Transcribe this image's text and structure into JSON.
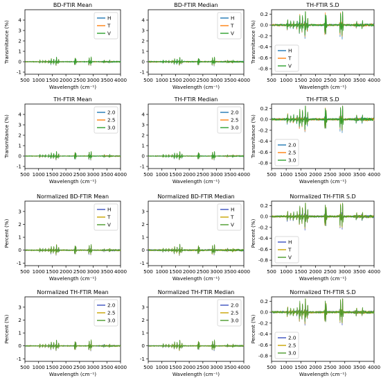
{
  "chart_data": [
    {
      "type": "line",
      "title": "BD-FTIR Mean",
      "xlabel": "Wavelength (cm⁻¹)",
      "ylabel": "Transmitance (%)",
      "xlim": [
        500,
        4000
      ],
      "ylim": [
        -1.2,
        5.0
      ],
      "xticks": [
        "500",
        "1000",
        "1500",
        "2000",
        "2500",
        "3000",
        "3500",
        "4000"
      ],
      "yticks": [
        "-1",
        "0",
        "1",
        "2",
        "3",
        "4"
      ],
      "legend": "top-right",
      "series": [
        {
          "name": "H",
          "color": "#1f77b4"
        },
        {
          "name": "T",
          "color": "#ff7f0e"
        },
        {
          "name": "V",
          "color": "#2ca02c"
        }
      ],
      "amp": 0.5,
      "noise": 0.06
    },
    {
      "type": "line",
      "title": "BD-FTIR Median",
      "xlabel": "Wavelength (cm⁻¹)",
      "ylabel": "",
      "xlim": [
        500,
        4000
      ],
      "ylim": [
        -1.2,
        5.0
      ],
      "xticks": [
        "500",
        "1000",
        "1500",
        "2000",
        "2500",
        "3000",
        "3500",
        "4000"
      ],
      "yticks": [
        "-1",
        "0",
        "1",
        "2",
        "3",
        "4"
      ],
      "legend": "top-right",
      "series": [
        {
          "name": "H",
          "color": "#1f77b4"
        },
        {
          "name": "T",
          "color": "#ff7f0e"
        },
        {
          "name": "V",
          "color": "#2ca02c"
        }
      ],
      "amp": 0.5,
      "noise": 0.08
    },
    {
      "type": "line",
      "title": "TH-FTIR S.D",
      "xlabel": "Wavelength (cm⁻¹)",
      "ylabel": "Transmitance (%)",
      "xlim": [
        500,
        4000
      ],
      "ylim": [
        -0.9,
        0.28
      ],
      "xticks": [
        "500",
        "1000",
        "1500",
        "2000",
        "2500",
        "3000",
        "3500",
        "4000"
      ],
      "yticks": [
        "-0.8",
        "-0.6",
        "-0.4",
        "-0.2",
        "0.0",
        "0.2"
      ],
      "legend": "lower-left",
      "series": [
        {
          "name": "H",
          "color": "#1f77b4"
        },
        {
          "name": "T",
          "color": "#ff7f0e"
        },
        {
          "name": "V",
          "color": "#2ca02c"
        }
      ],
      "amp": 0.3,
      "noise": 0.03
    },
    {
      "type": "line",
      "title": "TH-FTIR Mean",
      "xlabel": "Wavelength (cm⁻¹)",
      "ylabel": "Transmitance (%)",
      "xlim": [
        500,
        4000
      ],
      "ylim": [
        -1.2,
        5.0
      ],
      "xticks": [
        "500",
        "1000",
        "1500",
        "2000",
        "2500",
        "3000",
        "3500",
        "4000"
      ],
      "yticks": [
        "-1",
        "0",
        "1",
        "2",
        "3",
        "4"
      ],
      "legend": "top-right",
      "series": [
        {
          "name": "2.0",
          "color": "#1f77b4"
        },
        {
          "name": "2.5",
          "color": "#ff7f0e"
        },
        {
          "name": "3.0",
          "color": "#2ca02c"
        }
      ],
      "amp": 0.5,
      "noise": 0.05
    },
    {
      "type": "line",
      "title": "TH-FTIR Median",
      "xlabel": "Wavelength (cm⁻¹)",
      "ylabel": "",
      "xlim": [
        500,
        4000
      ],
      "ylim": [
        -1.2,
        5.0
      ],
      "xticks": [
        "500",
        "1000",
        "1500",
        "2000",
        "2500",
        "3000",
        "3500",
        "4000"
      ],
      "yticks": [
        "-1",
        "0",
        "1",
        "2",
        "3",
        "4"
      ],
      "legend": "top-right",
      "series": [
        {
          "name": "2.0",
          "color": "#1f77b4"
        },
        {
          "name": "2.5",
          "color": "#ff7f0e"
        },
        {
          "name": "3.0",
          "color": "#2ca02c"
        }
      ],
      "amp": 0.5,
      "noise": 0.05
    },
    {
      "type": "line",
      "title": "TH-FTIR S.D",
      "xlabel": "Wavelength (cm⁻¹)",
      "ylabel": "Transmitance (%)",
      "xlim": [
        500,
        4000
      ],
      "ylim": [
        -0.9,
        0.28
      ],
      "xticks": [
        "500",
        "1000",
        "1500",
        "2000",
        "2500",
        "3000",
        "3500",
        "4000"
      ],
      "yticks": [
        "-0.8",
        "-0.6",
        "-0.4",
        "-0.2",
        "0.0",
        "0.2"
      ],
      "legend": "lower-left",
      "series": [
        {
          "name": "2.0",
          "color": "#1f77b4"
        },
        {
          "name": "2.5",
          "color": "#ff7f0e"
        },
        {
          "name": "3.0",
          "color": "#2ca02c"
        }
      ],
      "amp": 0.3,
      "noise": 0.035
    },
    {
      "type": "line",
      "title": "Normalized BD-FTIR Mean",
      "xlabel": "Wavelength (cm⁻¹)",
      "ylabel": "Percent  (%)",
      "xlim": [
        500,
        4000
      ],
      "ylim": [
        -1.2,
        3.8
      ],
      "xticks": [
        "500",
        "1000",
        "1500",
        "2000",
        "2500",
        "3000",
        "3500",
        "4000"
      ],
      "yticks": [
        "-1",
        "0",
        "1",
        "2",
        "3"
      ],
      "legend": "top-right",
      "series": [
        {
          "name": "H",
          "color": "#3a4fbf"
        },
        {
          "name": "T",
          "color": "#c9a400"
        },
        {
          "name": "V",
          "color": "#4a9a2a"
        }
      ],
      "amp": 0.5,
      "noise": 0.06
    },
    {
      "type": "line",
      "title": "Normalized BD-FTIR Median",
      "xlabel": "Wavelength (cm⁻¹)",
      "ylabel": "",
      "xlim": [
        500,
        4000
      ],
      "ylim": [
        -1.2,
        3.8
      ],
      "xticks": [
        "500",
        "1000",
        "1500",
        "2000",
        "2500",
        "3000",
        "3500",
        "4000"
      ],
      "yticks": [
        "-1",
        "0",
        "1",
        "2",
        "3"
      ],
      "legend": "top-right",
      "series": [
        {
          "name": "H",
          "color": "#3a4fbf"
        },
        {
          "name": "T",
          "color": "#c9a400"
        },
        {
          "name": "V",
          "color": "#4a9a2a"
        }
      ],
      "amp": 0.5,
      "noise": 0.09
    },
    {
      "type": "line",
      "title": "Normalized TH-FTIR S.D",
      "xlabel": "Wavelength (cm⁻¹)",
      "ylabel": "Percent (%)",
      "xlim": [
        500,
        4000
      ],
      "ylim": [
        -0.9,
        0.28
      ],
      "xticks": [
        "500",
        "1000",
        "1500",
        "2000",
        "2500",
        "3000",
        "3500",
        "4000"
      ],
      "yticks": [
        "-0.8",
        "-0.6",
        "-0.4",
        "-0.2",
        "0.0",
        "0.2"
      ],
      "legend": "lower-left",
      "series": [
        {
          "name": "H",
          "color": "#3a4fbf"
        },
        {
          "name": "T",
          "color": "#c9a400"
        },
        {
          "name": "V",
          "color": "#4a9a2a"
        }
      ],
      "amp": 0.3,
      "noise": 0.03
    },
    {
      "type": "line",
      "title": "Normalized TH-FTIR Mean",
      "xlabel": "Wavelength (cm⁻¹)",
      "ylabel": "Percent  (%)",
      "xlim": [
        500,
        4000
      ],
      "ylim": [
        -1.2,
        3.8
      ],
      "xticks": [
        "500",
        "1000",
        "1500",
        "2000",
        "2500",
        "3000",
        "3500",
        "4000"
      ],
      "yticks": [
        "-1",
        "0",
        "1",
        "2",
        "3"
      ],
      "legend": "top-right",
      "series": [
        {
          "name": "2.0",
          "color": "#3a4fbf"
        },
        {
          "name": "2.5",
          "color": "#c9a400"
        },
        {
          "name": "3.0",
          "color": "#4a9a2a"
        }
      ],
      "amp": 0.5,
      "noise": 0.05
    },
    {
      "type": "line",
      "title": "Normalized TH-FTIR Median",
      "xlabel": "Wavelength (cm⁻¹)",
      "ylabel": "",
      "xlim": [
        500,
        4000
      ],
      "ylim": [
        -1.2,
        3.8
      ],
      "xticks": [
        "500",
        "1000",
        "1500",
        "2000",
        "2500",
        "3000",
        "3500",
        "4000"
      ],
      "yticks": [
        "-1",
        "0",
        "1",
        "2",
        "3"
      ],
      "legend": "top-right",
      "series": [
        {
          "name": "2.0",
          "color": "#3a4fbf"
        },
        {
          "name": "2.5",
          "color": "#c9a400"
        },
        {
          "name": "3.0",
          "color": "#4a9a2a"
        }
      ],
      "amp": 0.5,
      "noise": 0.05
    },
    {
      "type": "line",
      "title": "Normalized TH-FTIR S.D",
      "xlabel": "Wavelength (cm⁻¹)",
      "ylabel": "Percent (%)",
      "xlim": [
        500,
        4000
      ],
      "ylim": [
        -0.9,
        0.28
      ],
      "xticks": [
        "500",
        "1000",
        "1500",
        "2000",
        "2500",
        "3000",
        "3500",
        "4000"
      ],
      "yticks": [
        "-0.8",
        "-0.6",
        "-0.4",
        "-0.2",
        "0.0",
        "0.2"
      ],
      "legend": "lower-left",
      "series": [
        {
          "name": "2.0",
          "color": "#3a4fbf"
        },
        {
          "name": "2.5",
          "color": "#c9a400"
        },
        {
          "name": "3.0",
          "color": "#4a9a2a"
        }
      ],
      "amp": 0.3,
      "noise": 0.035
    }
  ]
}
